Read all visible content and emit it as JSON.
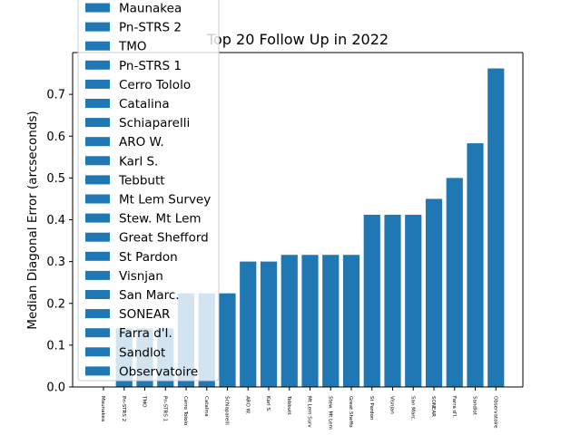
{
  "chart_data": {
    "type": "bar",
    "title": "Top 20 Follow Up in 2022",
    "xlabel": "",
    "ylabel": "Median Diagonal Error (arcseconds)",
    "ylim": [
      0,
      0.8
    ],
    "yticks": [
      "0.0",
      "0.1",
      "0.2",
      "0.3",
      "0.4",
      "0.5",
      "0.6",
      "0.7"
    ],
    "grid": false,
    "legend_position": "upper-left",
    "color": "#1f77b4",
    "categories": [
      "Maunakea",
      "Pn-STRS 2",
      "TMO",
      "Pn-STRS 1",
      "Cerro Tololo",
      "Catalina",
      "Schiaparelli",
      "ARO W.",
      "Karl S.",
      "Tebbutt",
      "Mt Lem Survey",
      "Stew. Mt Lem",
      "Great Shefford",
      "St Pardon",
      "Visnjan",
      "San Marc.",
      "SONEAR",
      "Farra d'I.",
      "Sandlot",
      "Observatoire"
    ],
    "tick_labels": [
      "Maunakea",
      "Pn-STRS 2",
      "TMO",
      "Pn-STRS 1",
      "Cerro Tololo",
      "Catalina",
      "Schiaparelli",
      "ARO W.",
      "Karl S.",
      "Tebbutt",
      "Mt Lem Surv",
      "Stew. Mt Lem",
      "Great Sheffo",
      "St Pardon",
      "Visnjan",
      "San Marc.",
      "SONEAR",
      "Farra d'I.",
      "Sandlot",
      "Observatoire"
    ],
    "values": [
      0.0,
      0.14,
      0.14,
      0.14,
      0.224,
      0.224,
      0.224,
      0.3,
      0.3,
      0.316,
      0.316,
      0.316,
      0.316,
      0.412,
      0.412,
      0.412,
      0.45,
      0.5,
      0.583,
      0.762
    ]
  }
}
